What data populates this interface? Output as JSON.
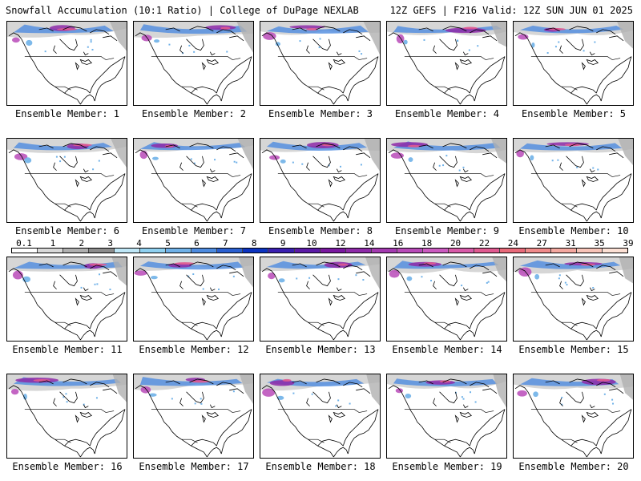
{
  "header": {
    "title_left": "Snowfall Accumulation (10:1 Ratio) | College of DuPage NEXLAB",
    "title_right": "12Z GEFS | F216 Valid: 12Z SUN JUN 01 2025"
  },
  "legend": {
    "ticks": [
      "0.1",
      "1",
      "2",
      "3",
      "4",
      "5",
      "6",
      "7",
      "8",
      "9",
      "10",
      "12",
      "14",
      "16",
      "18",
      "20",
      "22",
      "24",
      "27",
      "31",
      "35",
      "39"
    ],
    "colors": [
      "#ffffff",
      "#d9d9d9",
      "#b0b0b0",
      "#8c8c8c",
      "#bfe7f7",
      "#8fd0f0",
      "#6fb1e8",
      "#4d8be0",
      "#2a5fd0",
      "#0c33c0",
      "#3a1fb0",
      "#5b1aa6",
      "#7a18a0",
      "#8e2aa8",
      "#a33ab0",
      "#b84ab8",
      "#cb5ac0",
      "#d85aa8",
      "#e05a90",
      "#e86a7a",
      "#f08a8a",
      "#f4a8a0",
      "#f8c4b8",
      "#fce0d4"
    ]
  },
  "panels": [
    {
      "label": "Ensemble Member: 1"
    },
    {
      "label": "Ensemble Member: 2"
    },
    {
      "label": "Ensemble Member: 3"
    },
    {
      "label": "Ensemble Member: 4"
    },
    {
      "label": "Ensemble Member: 5"
    },
    {
      "label": "Ensemble Member: 6"
    },
    {
      "label": "Ensemble Member: 7"
    },
    {
      "label": "Ensemble Member: 8"
    },
    {
      "label": "Ensemble Member: 9"
    },
    {
      "label": "Ensemble Member: 10"
    },
    {
      "label": "Ensemble Member: 11"
    },
    {
      "label": "Ensemble Member: 12"
    },
    {
      "label": "Ensemble Member: 13"
    },
    {
      "label": "Ensemble Member: 14"
    },
    {
      "label": "Ensemble Member: 15"
    },
    {
      "label": "Ensemble Member: 16"
    },
    {
      "label": "Ensemble Member: 17"
    },
    {
      "label": "Ensemble Member: 18"
    },
    {
      "label": "Ensemble Member: 19"
    },
    {
      "label": "Ensemble Member: 20"
    }
  ]
}
